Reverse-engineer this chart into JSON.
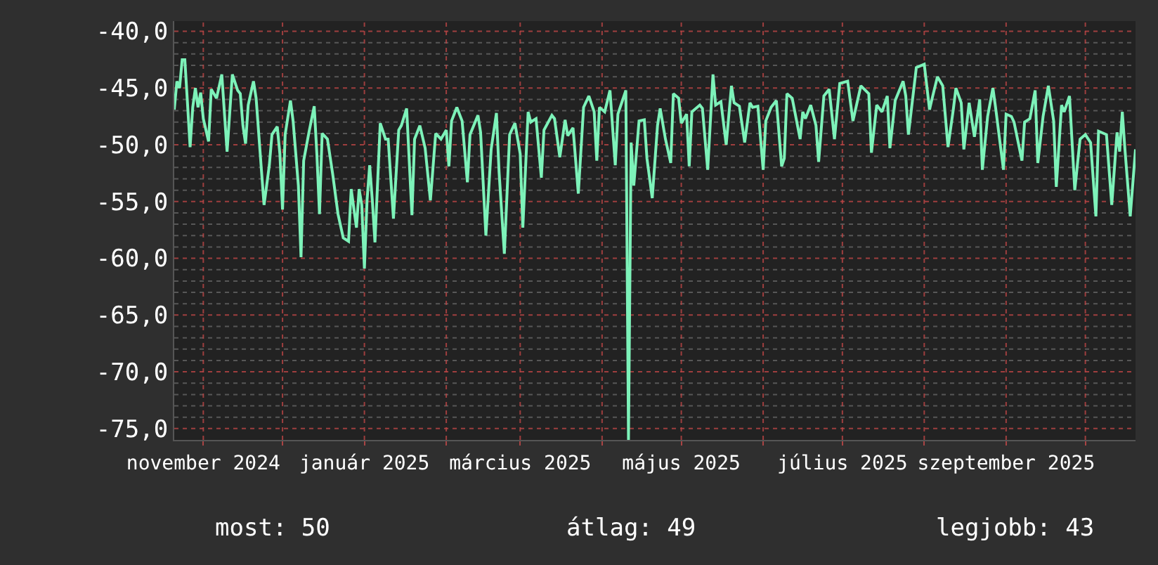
{
  "chart_data": {
    "type": "line",
    "x": [
      "2024-10-21",
      "2024-10-22",
      "2024-10-23",
      "2024-10-24",
      "2024-10-25",
      "2024-10-26",
      "2024-10-27",
      "2024-10-28",
      "2024-10-29",
      "2024-10-30",
      "2024-10-31",
      "2024-11-01",
      "2024-11-03",
      "2024-11-04",
      "2024-11-06",
      "2024-11-08",
      "2024-11-10",
      "2024-11-12",
      "2024-11-14",
      "2024-11-15",
      "2024-11-16",
      "2024-11-17",
      "2024-11-18",
      "2024-11-20",
      "2024-11-21",
      "2024-11-23",
      "2024-11-24",
      "2024-11-26",
      "2024-11-27",
      "2024-11-29",
      "2024-11-30",
      "2024-12-01",
      "2024-12-02",
      "2024-12-04",
      "2024-12-05",
      "2024-12-07",
      "2024-12-08",
      "2024-12-09",
      "2024-12-11",
      "2024-12-13",
      "2024-12-14",
      "2024-12-15",
      "2024-12-16",
      "2024-12-18",
      "2024-12-20",
      "2024-12-22",
      "2024-12-24",
      "2024-12-26",
      "2024-12-27",
      "2024-12-29",
      "2024-12-30",
      "2024-12-31",
      "2025-01-01",
      "2025-01-02",
      "2025-01-03",
      "2025-01-04",
      "2025-01-05",
      "2025-01-07",
      "2025-01-09",
      "2025-01-10",
      "2025-01-12",
      "2025-01-14",
      "2025-01-15",
      "2025-01-17",
      "2025-01-19",
      "2025-01-20",
      "2025-01-22",
      "2025-01-24",
      "2025-01-26",
      "2025-01-28",
      "2025-01-30",
      "2025-02-01",
      "2025-02-02",
      "2025-02-03",
      "2025-02-05",
      "2025-02-07",
      "2025-02-09",
      "2025-02-10",
      "2025-02-13",
      "2025-02-14",
      "2025-02-16",
      "2025-02-18",
      "2025-02-20",
      "2025-02-21",
      "2025-02-23",
      "2025-02-25",
      "2025-02-27",
      "2025-03-01",
      "2025-03-02",
      "2025-03-04",
      "2025-03-05",
      "2025-03-07",
      "2025-03-09",
      "2025-03-10",
      "2025-03-13",
      "2025-03-14",
      "2025-03-16",
      "2025-03-18",
      "2025-03-19",
      "2025-03-21",
      "2025-03-23",
      "2025-03-25",
      "2025-03-27",
      "2025-03-29",
      "2025-03-30",
      "2025-03-31",
      "2025-04-02",
      "2025-04-04",
      "2025-04-06",
      "2025-04-07",
      "2025-04-10",
      "2025-04-11",
      "2025-04-12",
      "2025-04-13",
      "2025-04-15",
      "2025-04-17",
      "2025-04-18",
      "2025-04-20",
      "2025-04-22",
      "2025-04-23",
      "2025-04-25",
      "2025-04-27",
      "2025-04-28",
      "2025-04-30",
      "2025-05-01",
      "2025-05-03",
      "2025-05-04",
      "2025-05-05",
      "2025-05-08",
      "2025-05-09",
      "2025-05-11",
      "2025-05-13",
      "2025-05-14",
      "2025-05-16",
      "2025-05-18",
      "2025-05-20",
      "2025-05-21",
      "2025-05-23",
      "2025-05-25",
      "2025-05-27",
      "2025-05-28",
      "2025-05-30",
      "2025-06-01",
      "2025-06-02",
      "2025-06-04",
      "2025-06-06",
      "2025-06-08",
      "2025-06-09",
      "2025-06-10",
      "2025-06-12",
      "2025-06-15",
      "2025-06-16",
      "2025-06-17",
      "2025-06-19",
      "2025-06-21",
      "2025-06-22",
      "2025-06-24",
      "2025-06-26",
      "2025-06-28",
      "2025-06-30",
      "2025-07-03",
      "2025-07-05",
      "2025-07-08",
      "2025-07-11",
      "2025-07-12",
      "2025-07-14",
      "2025-07-16",
      "2025-07-18",
      "2025-07-19",
      "2025-07-21",
      "2025-07-24",
      "2025-07-25",
      "2025-07-26",
      "2025-07-29",
      "2025-08-01",
      "2025-08-03",
      "2025-08-04",
      "2025-08-06",
      "2025-08-08",
      "2025-08-10",
      "2025-08-12",
      "2025-08-13",
      "2025-08-15",
      "2025-08-16",
      "2025-08-18",
      "2025-08-20",
      "2025-08-22",
      "2025-08-23",
      "2025-08-25",
      "2025-08-27",
      "2025-08-28",
      "2025-08-31",
      "2025-09-01",
      "2025-09-03",
      "2025-09-04",
      "2025-09-07",
      "2025-09-08",
      "2025-09-10",
      "2025-09-12",
      "2025-09-13",
      "2025-09-15",
      "2025-09-17",
      "2025-09-19",
      "2025-09-20",
      "2025-09-22",
      "2025-09-23",
      "2025-09-25",
      "2025-09-27",
      "2025-09-29",
      "2025-10-01",
      "2025-10-03",
      "2025-10-05",
      "2025-10-06",
      "2025-10-09",
      "2025-10-11",
      "2025-10-13",
      "2025-10-14",
      "2025-10-15",
      "2025-10-16",
      "2025-10-18",
      "2025-10-20"
    ],
    "series": [
      {
        "color": "#7df2b9",
        "values": [
          -46.9,
          -44.4,
          -45,
          -42.5,
          -42.5,
          -46.3,
          -50.2,
          -46.7,
          -45,
          -46.7,
          -45.4,
          -47.7,
          -49.7,
          -45.1,
          -45.9,
          -43.8,
          -50.6,
          -43.8,
          -45.2,
          -45.5,
          -48.3,
          -49.9,
          -46.5,
          -44.4,
          -45.9,
          -52.2,
          -55.3,
          -51.8,
          -49.1,
          -48.4,
          -50.8,
          -55.7,
          -49.1,
          -46.1,
          -47.9,
          -53.6,
          -59.9,
          -51.4,
          -48.9,
          -46.6,
          -50.8,
          -56.1,
          -49,
          -49.5,
          -52.6,
          -56.1,
          -58.2,
          -58.5,
          -53.9,
          -57.3,
          -53.9,
          -55.3,
          -60.9,
          -54.9,
          -51.8,
          -54.9,
          -58.6,
          -48.1,
          -49.5,
          -49.5,
          -56.5,
          -48.7,
          -48.3,
          -46.8,
          -56.2,
          -49.5,
          -48.3,
          -50.3,
          -54.9,
          -49,
          -49.5,
          -48.7,
          -51.9,
          -47.9,
          -46.7,
          -47.9,
          -53.3,
          -49.1,
          -47.4,
          -48.9,
          -58,
          -50.4,
          -47.2,
          -52.4,
          -59.6,
          -49.1,
          -48.1,
          -50.8,
          -57.3,
          -47.1,
          -48,
          -47.7,
          -52.9,
          -48.7,
          -47.4,
          -47.7,
          -51.1,
          -47.8,
          -49.2,
          -48.5,
          -54.3,
          -46.7,
          -45.7,
          -47.1,
          -51.4,
          -46.7,
          -47.1,
          -45.2,
          -51.8,
          -47.3,
          -45.2,
          -76,
          -49.8,
          -53.6,
          -47.9,
          -47.8,
          -51.2,
          -54.7,
          -48.3,
          -46.8,
          -49.5,
          -51.6,
          -45.5,
          -45.9,
          -48.1,
          -47.3,
          -51.9,
          -47.1,
          -46.5,
          -46.8,
          -52.2,
          -43.8,
          -46.5,
          -46.2,
          -50,
          -44.8,
          -46.3,
          -46.6,
          -49.8,
          -46.3,
          -46.7,
          -46.6,
          -52.2,
          -47.9,
          -46.7,
          -46.1,
          -51.9,
          -51.2,
          -45.5,
          -45.9,
          -49.5,
          -47.1,
          -47.7,
          -46.5,
          -48.3,
          -51.5,
          -45.7,
          -45.1,
          -49.5,
          -44.6,
          -44.4,
          -47.9,
          -44.8,
          -45.5,
          -50.7,
          -46.5,
          -47.1,
          -45.7,
          -50.3,
          -46.1,
          -44.4,
          -45.7,
          -49.1,
          -43.2,
          -42.9,
          -46.9,
          -45.9,
          -44,
          -44.8,
          -50.2,
          -46.9,
          -45,
          -46.3,
          -50.4,
          -46.3,
          -49.3,
          -46,
          -52.2,
          -47.5,
          -45,
          -46.7,
          -52.2,
          -47.3,
          -47.5,
          -48,
          -51.4,
          -48,
          -47.7,
          -45.2,
          -51.6,
          -47.5,
          -44.8,
          -47.9,
          -53.7,
          -46.5,
          -47.1,
          -45.7,
          -54,
          -49.5,
          -49.1,
          -49.8,
          -56.3,
          -48.8,
          -49.1,
          -55.3,
          -48.9,
          -50.6,
          -47.1,
          -50.4,
          -56.3,
          -50.4
        ]
      }
    ],
    "xlim": [
      "2024-10-21",
      "2025-10-20"
    ],
    "xticks": [
      {
        "value": "2024-11-01",
        "label": "november 2024"
      },
      {
        "value": "2024-12-01",
        "label": null
      },
      {
        "value": "2025-01-01",
        "label": "január 2025"
      },
      {
        "value": "2025-02-01",
        "label": null
      },
      {
        "value": "2025-03-01",
        "label": "március 2025"
      },
      {
        "value": "2025-04-01",
        "label": null
      },
      {
        "value": "2025-05-01",
        "label": "május 2025"
      },
      {
        "value": "2025-06-01",
        "label": null
      },
      {
        "value": "2025-07-01",
        "label": "július 2025"
      },
      {
        "value": "2025-08-01",
        "label": null
      },
      {
        "value": "2025-09-01",
        "label": "szeptember 2025"
      },
      {
        "value": "2025-10-01",
        "label": null
      }
    ],
    "ylim": [
      -76,
      -39.1
    ],
    "yticks": [
      {
        "value": -75,
        "label": "-75,0"
      },
      {
        "value": -74,
        "label": null
      },
      {
        "value": -73,
        "label": null
      },
      {
        "value": -72,
        "label": null
      },
      {
        "value": -71,
        "label": null
      },
      {
        "value": -70,
        "label": "-70,0"
      },
      {
        "value": -69,
        "label": null
      },
      {
        "value": -68,
        "label": null
      },
      {
        "value": -67,
        "label": null
      },
      {
        "value": -66,
        "label": null
      },
      {
        "value": -65,
        "label": "-65,0"
      },
      {
        "value": -64,
        "label": null
      },
      {
        "value": -63,
        "label": null
      },
      {
        "value": -62,
        "label": null
      },
      {
        "value": -61,
        "label": null
      },
      {
        "value": -60,
        "label": "-60,0"
      },
      {
        "value": -59,
        "label": null
      },
      {
        "value": -58,
        "label": null
      },
      {
        "value": -57,
        "label": null
      },
      {
        "value": -56,
        "label": null
      },
      {
        "value": -55,
        "label": "-55,0"
      },
      {
        "value": -54,
        "label": null
      },
      {
        "value": -53,
        "label": null
      },
      {
        "value": -52,
        "label": null
      },
      {
        "value": -51,
        "label": null
      },
      {
        "value": -50,
        "label": "-50,0"
      },
      {
        "value": -49,
        "label": null
      },
      {
        "value": -48,
        "label": null
      },
      {
        "value": -47,
        "label": null
      },
      {
        "value": -46,
        "label": null
      },
      {
        "value": -45,
        "label": "-45,0"
      },
      {
        "value": -44,
        "label": null
      },
      {
        "value": -43,
        "label": null
      },
      {
        "value": -42,
        "label": null
      },
      {
        "value": -41,
        "label": null
      },
      {
        "value": -40,
        "label": "-40,0"
      }
    ],
    "grid": true,
    "annotations": [
      "most: 50",
      "átlag: 49",
      "legjobb: 43"
    ]
  }
}
